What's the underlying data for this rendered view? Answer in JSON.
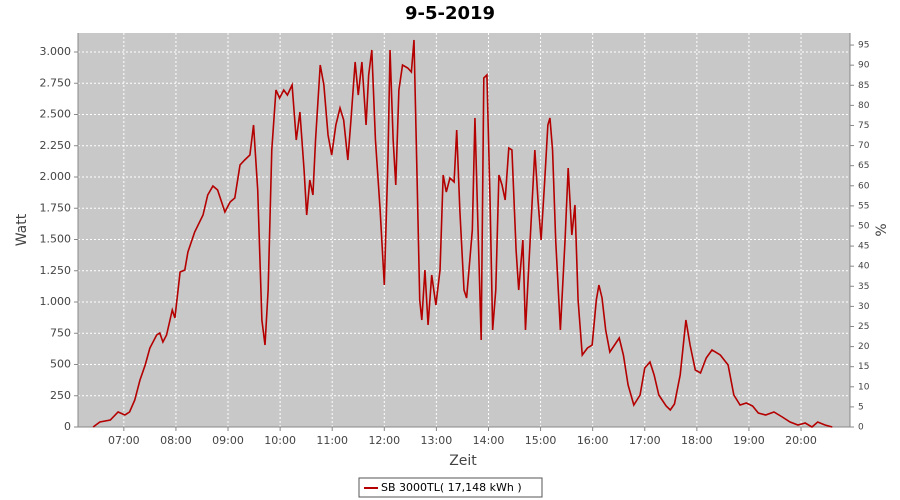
{
  "chart_data": {
    "type": "line",
    "title": "9-5-2019",
    "xlabel": "Zeit",
    "ylabel": "Watt",
    "y2label": "%",
    "x": [
      6.41,
      6.54,
      6.74,
      6.89,
      7.02,
      7.11,
      7.21,
      7.31,
      7.41,
      7.5,
      7.63,
      7.69,
      7.75,
      7.82,
      7.93,
      7.98,
      8.08,
      8.17,
      8.23,
      8.36,
      8.52,
      8.61,
      8.71,
      8.8,
      8.94,
      9.04,
      9.13,
      9.23,
      9.32,
      9.42,
      9.49,
      9.57,
      9.65,
      9.71,
      9.77,
      9.84,
      9.92,
      9.99,
      10.07,
      10.14,
      10.23,
      10.31,
      10.38,
      10.46,
      10.51,
      10.57,
      10.63,
      10.68,
      10.77,
      10.84,
      10.92,
      10.99,
      11.07,
      11.15,
      11.22,
      11.3,
      11.36,
      11.44,
      11.5,
      11.57,
      11.65,
      11.7,
      11.76,
      11.83,
      11.92,
      12.0,
      12.07,
      12.11,
      12.17,
      12.22,
      12.28,
      12.35,
      12.45,
      12.52,
      12.57,
      12.63,
      12.68,
      12.72,
      12.78,
      12.84,
      12.91,
      12.99,
      13.07,
      13.13,
      13.19,
      13.26,
      13.34,
      13.39,
      13.45,
      13.53,
      13.58,
      13.69,
      13.74,
      13.8,
      13.86,
      13.91,
      13.97,
      14.03,
      14.08,
      14.14,
      14.2,
      14.26,
      14.32,
      14.39,
      14.45,
      14.53,
      14.58,
      14.66,
      14.71,
      14.8,
      14.89,
      14.95,
      15.01,
      15.08,
      15.14,
      15.18,
      15.23,
      15.29,
      15.38,
      15.47,
      15.53,
      15.6,
      15.66,
      15.72,
      15.8,
      15.9,
      15.99,
      16.07,
      16.12,
      16.18,
      16.25,
      16.33,
      16.42,
      16.51,
      16.59,
      16.68,
      16.79,
      16.91,
      17.0,
      17.1,
      17.18,
      17.27,
      17.41,
      17.49,
      17.57,
      17.68,
      17.79,
      17.87,
      17.97,
      18.07,
      18.18,
      18.29,
      18.45,
      18.6,
      18.71,
      18.83,
      18.95,
      19.07,
      19.18,
      19.32,
      19.48,
      19.64,
      19.79,
      19.94,
      20.08,
      20.21,
      20.32,
      20.46,
      20.6
    ],
    "series": [
      {
        "name": "SB 3000TL( 17,148 kWh )",
        "color": "#b40000",
        "values": [
          0,
          40,
          56,
          120,
          96,
          120,
          216,
          376,
          496,
          632,
          736,
          752,
          680,
          736,
          936,
          872,
          1240,
          1256,
          1400,
          1560,
          1696,
          1856,
          1928,
          1896,
          1720,
          1800,
          1832,
          2096,
          2136,
          2176,
          2416,
          1896,
          856,
          656,
          1096,
          2216,
          2696,
          2632,
          2696,
          2656,
          2736,
          2296,
          2520,
          2056,
          1696,
          1976,
          1856,
          2296,
          2896,
          2736,
          2336,
          2176,
          2416,
          2552,
          2456,
          2136,
          2456,
          2920,
          2656,
          2920,
          2416,
          2816,
          3016,
          2296,
          1736,
          1136,
          2136,
          3016,
          2296,
          1936,
          2696,
          2896,
          2872,
          2840,
          3096,
          1976,
          1016,
          856,
          1256,
          816,
          1216,
          976,
          1256,
          2016,
          1880,
          1992,
          1960,
          2376,
          1736,
          1096,
          1032,
          1576,
          2472,
          1576,
          696,
          2792,
          2816,
          1816,
          776,
          1096,
          2016,
          1936,
          1816,
          2232,
          2216,
          1416,
          1096,
          1496,
          776,
          1496,
          2216,
          1816,
          1496,
          1976,
          2416,
          2472,
          2216,
          1496,
          776,
          1496,
          2072,
          1536,
          1776,
          1016,
          576,
          632,
          656,
          1016,
          1136,
          1032,
          776,
          600,
          656,
          712,
          576,
          336,
          176,
          256,
          472,
          520,
          416,
          256,
          168,
          136,
          184,
          416,
          856,
          656,
          456,
          432,
          552,
          616,
          576,
          496,
          256,
          176,
          192,
          168,
          112,
          96,
          120,
          80,
          40,
          16,
          32,
          0,
          40,
          16,
          0
        ]
      }
    ],
    "xlim": [
      6.12,
      20.94
    ],
    "xticks": [
      {
        "value": 7,
        "label": "07:00"
      },
      {
        "value": 8,
        "label": "08:00"
      },
      {
        "value": 9,
        "label": "09:00"
      },
      {
        "value": 10,
        "label": "10:00"
      },
      {
        "value": 11,
        "label": "11:00"
      },
      {
        "value": 12,
        "label": "12:00"
      },
      {
        "value": 13,
        "label": "13:00"
      },
      {
        "value": 14,
        "label": "14:00"
      },
      {
        "value": 15,
        "label": "15:00"
      },
      {
        "value": 16,
        "label": "16:00"
      },
      {
        "value": 17,
        "label": "17:00"
      },
      {
        "value": 18,
        "label": "18:00"
      },
      {
        "value": 19,
        "label": "19:00"
      },
      {
        "value": 20,
        "label": "20:00"
      }
    ],
    "ylim": [
      0,
      3152
    ],
    "yticks": [
      0,
      250,
      500,
      750,
      {
        "value": 1000,
        "label": "1.000"
      },
      {
        "value": 1250,
        "label": "1.250"
      },
      {
        "value": 1500,
        "label": "1.500"
      },
      {
        "value": 1750,
        "label": "1.750"
      },
      {
        "value": 2000,
        "label": "2.000"
      },
      {
        "value": 2250,
        "label": "2.250"
      },
      {
        "value": 2500,
        "label": "2.500"
      },
      {
        "value": 2750,
        "label": "2.750"
      },
      {
        "value": 3000,
        "label": "3.000"
      }
    ],
    "y2lim": [
      0,
      98
    ],
    "y2ticks": [
      0,
      5,
      10,
      15,
      20,
      25,
      30,
      35,
      40,
      45,
      50,
      55,
      60,
      65,
      70,
      75,
      80,
      85,
      90,
      95
    ],
    "grid": true,
    "legend": "bottom"
  }
}
